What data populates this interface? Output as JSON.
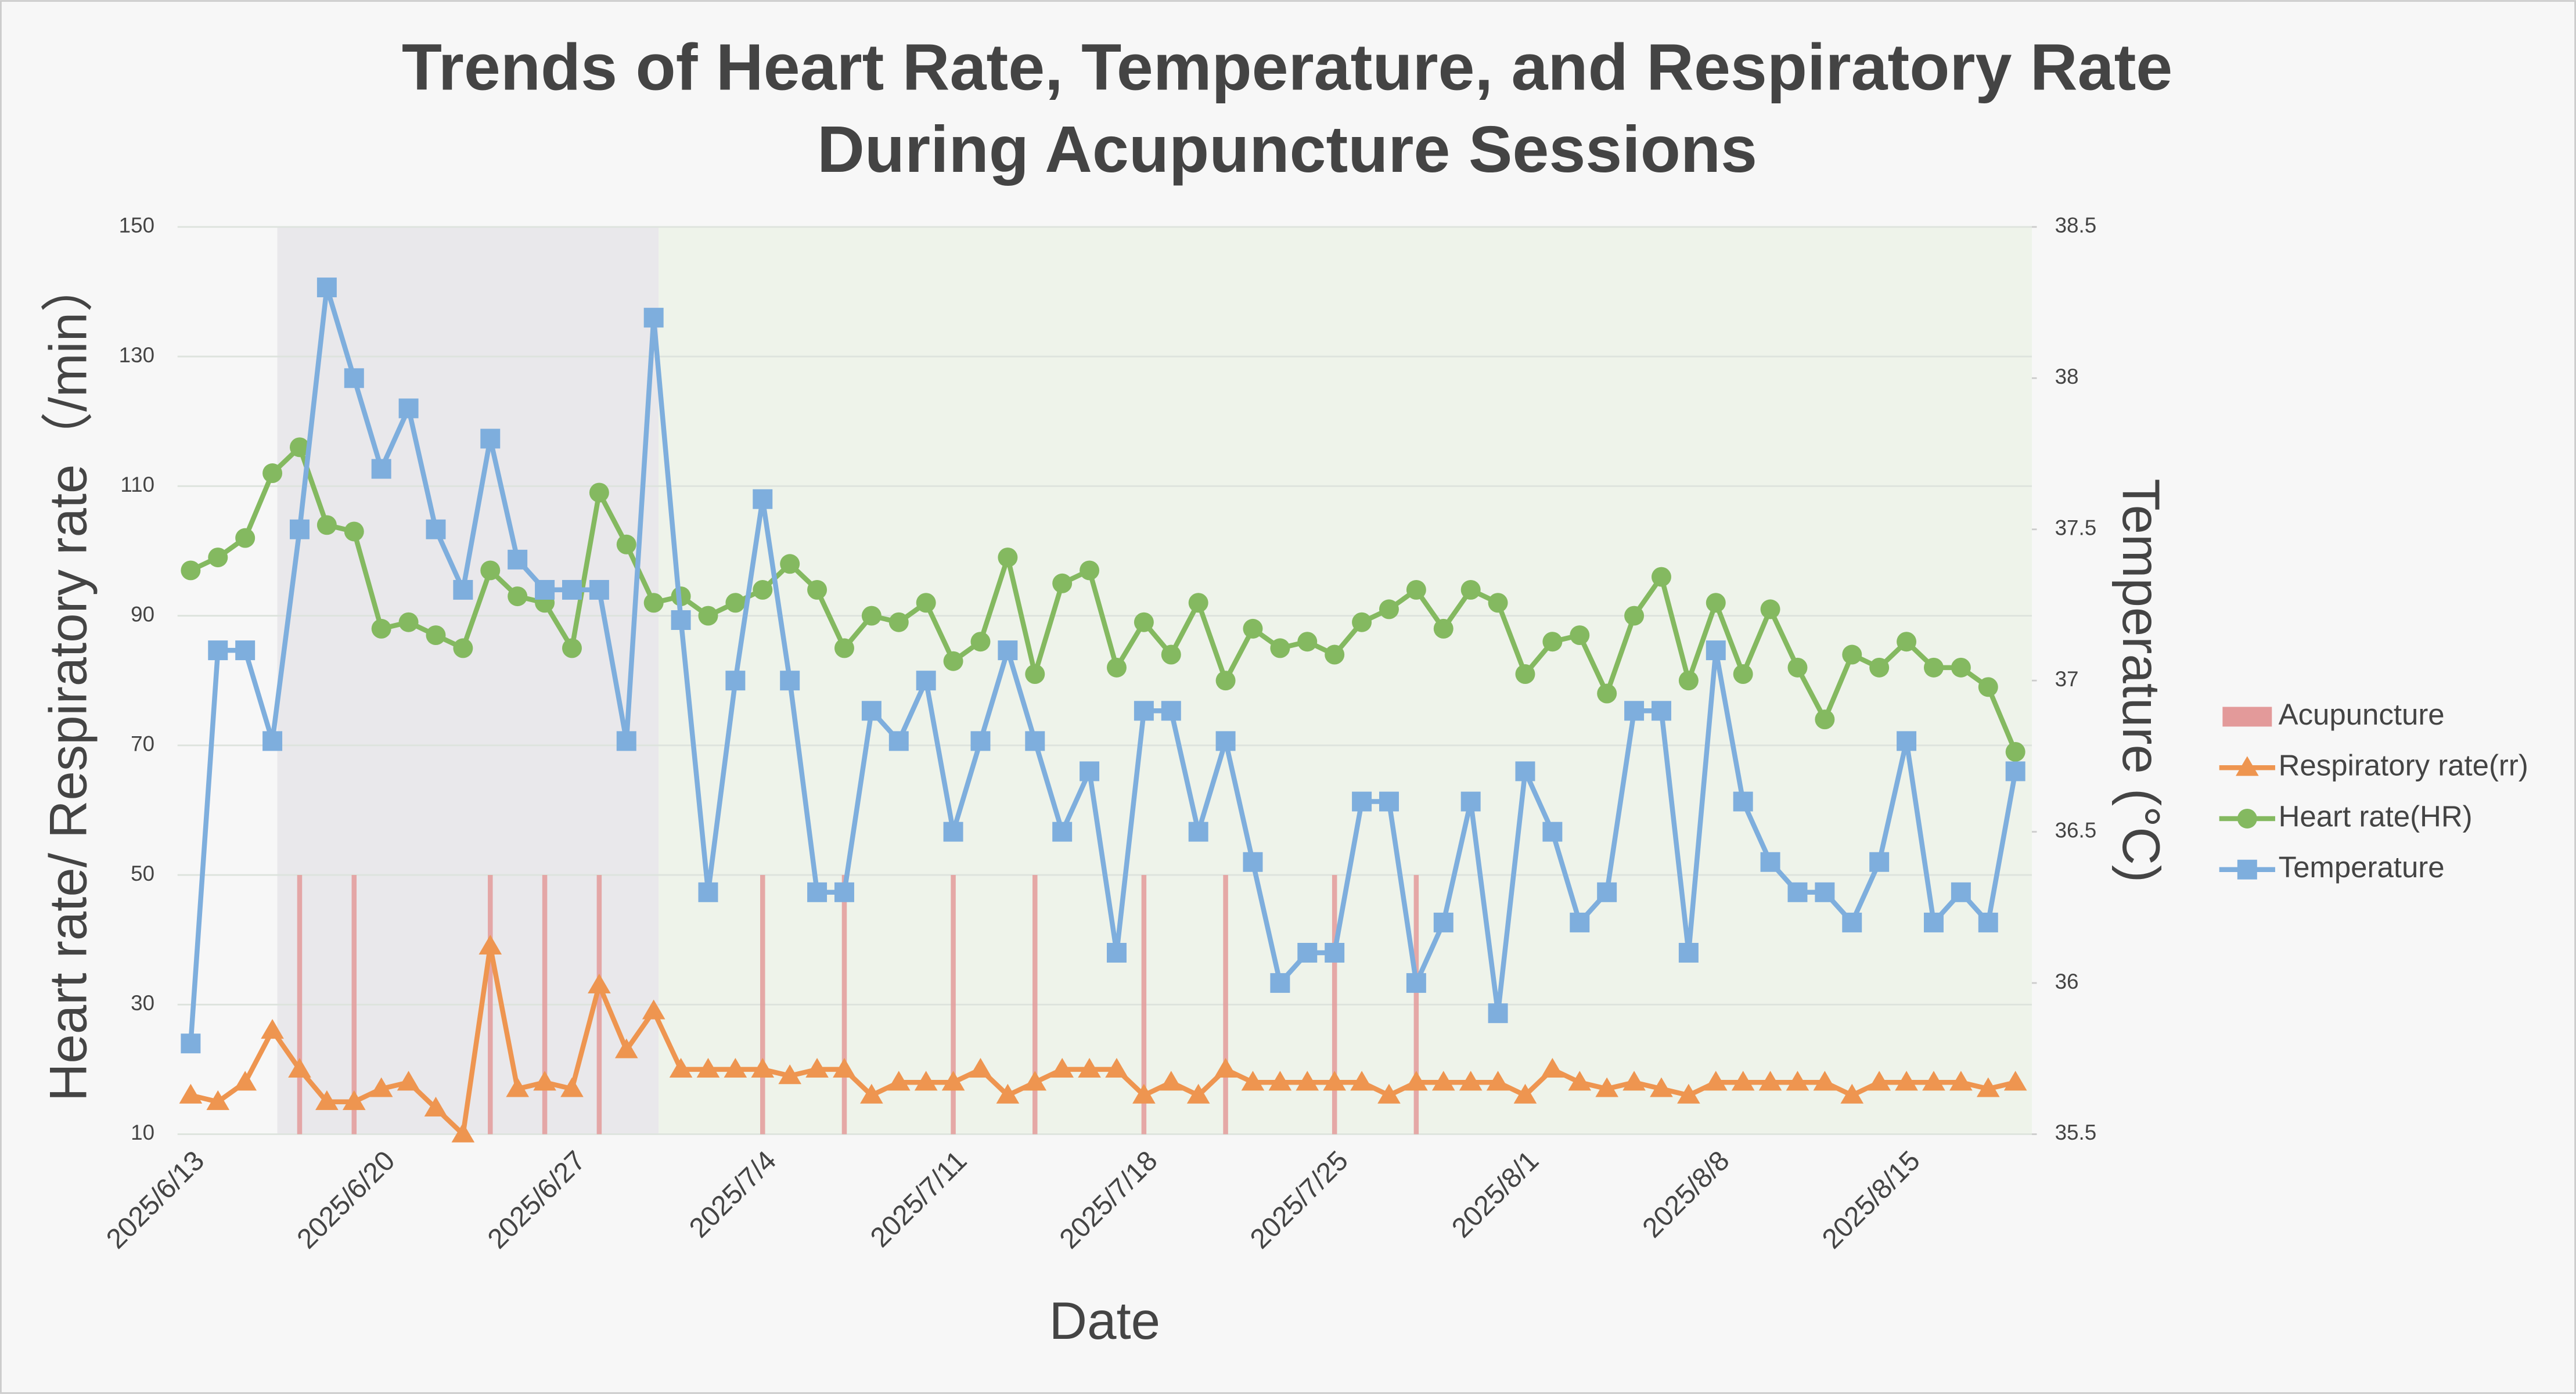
{
  "chart_data": {
    "type": "line",
    "title": "Trends of Heart Rate, Temperature, and Respiratory Rate",
    "subtitle": "During Acupuncture Sessions",
    "x_label": "Date",
    "y_label": "Heart rate/ Respiratory rate（/min）",
    "y2_label": "Temperature (°C)",
    "x": [
      "2025/6/13",
      "2025/6/14",
      "2025/6/15",
      "2025/6/16",
      "2025/6/17",
      "2025/6/18",
      "2025/6/19",
      "2025/6/20",
      "2025/6/21",
      "2025/6/22",
      "2025/6/23",
      "2025/6/24",
      "2025/6/25",
      "2025/6/26",
      "2025/6/27",
      "2025/6/28",
      "2025/6/29",
      "2025/6/30",
      "2025/7/1",
      "2025/7/2",
      "2025/7/3",
      "2025/7/4",
      "2025/7/5",
      "2025/7/6",
      "2025/7/7",
      "2025/7/8",
      "2025/7/9",
      "2025/7/10",
      "2025/7/11",
      "2025/7/12",
      "2025/7/13",
      "2025/7/14",
      "2025/7/15",
      "2025/7/16",
      "2025/7/17",
      "2025/7/18",
      "2025/7/19",
      "2025/7/20",
      "2025/7/21",
      "2025/7/22",
      "2025/7/23",
      "2025/7/24",
      "2025/7/25",
      "2025/7/26",
      "2025/7/27",
      "2025/7/28",
      "2025/7/29",
      "2025/7/30",
      "2025/7/31",
      "2025/8/1",
      "2025/8/2",
      "2025/8/3",
      "2025/8/4",
      "2025/8/5",
      "2025/8/6",
      "2025/8/7",
      "2025/8/8",
      "2025/8/9",
      "2025/8/10",
      "2025/8/11",
      "2025/8/12",
      "2025/8/13",
      "2025/8/14",
      "2025/8/15",
      "2025/8/16",
      "2025/8/17",
      "2025/8/18",
      "2025/8/19"
    ],
    "xticks": [
      "2025/6/13",
      "2025/6/20",
      "2025/6/27",
      "2025/7/4",
      "2025/7/11",
      "2025/7/18",
      "2025/7/25",
      "2025/8/1",
      "2025/8/8",
      "2025/8/15"
    ],
    "ylim": [
      10,
      150
    ],
    "yticks": [
      10,
      30,
      50,
      70,
      90,
      110,
      130,
      150
    ],
    "y2lim": [
      35.5,
      38.5
    ],
    "y2ticks": [
      35.5,
      36,
      36.5,
      37,
      37.5,
      38,
      38.5
    ],
    "grid": true,
    "shaded_regions": [
      {
        "from": "2025/6/16",
        "to": "2025/6/30",
        "color": "#e9e8eb"
      },
      {
        "from": "2025/6/30",
        "to": "2025/8/19",
        "color": "#eef3ea"
      }
    ],
    "series": [
      {
        "name": "Acupuncture",
        "type": "bar",
        "color": "#e39a9a",
        "values": [
          null,
          null,
          null,
          null,
          50,
          null,
          50,
          null,
          null,
          null,
          null,
          50,
          null,
          50,
          null,
          50,
          null,
          null,
          null,
          null,
          null,
          50,
          null,
          null,
          50,
          null,
          null,
          null,
          50,
          null,
          null,
          50,
          null,
          null,
          null,
          50,
          null,
          null,
          50,
          null,
          null,
          null,
          50,
          null,
          null,
          50,
          null,
          null,
          null,
          null,
          null,
          null,
          null,
          null,
          null,
          null,
          null,
          null,
          null,
          null,
          null,
          null,
          null,
          null,
          null,
          null,
          null,
          null
        ]
      },
      {
        "name": "Respiratory rate(rr)",
        "marker": "triangle",
        "color": "#ee9550",
        "values": [
          16,
          15,
          18,
          26,
          20,
          15,
          15,
          17,
          18,
          14,
          10,
          39,
          17,
          18,
          17,
          33,
          23,
          29,
          20,
          20,
          20,
          20,
          19,
          20,
          20,
          16,
          18,
          18,
          18,
          20,
          16,
          18,
          20,
          20,
          20,
          16,
          18,
          16,
          20,
          18,
          18,
          18,
          18,
          18,
          16,
          18,
          18,
          18,
          18,
          16,
          20,
          18,
          17,
          18,
          17,
          16,
          18,
          18,
          18,
          18,
          18,
          16,
          18,
          18,
          18,
          18,
          17,
          18
        ]
      },
      {
        "name": "Heart rate(HR)",
        "marker": "circle",
        "color": "#84b960",
        "values": [
          97,
          99,
          102,
          112,
          116,
          104,
          103,
          88,
          89,
          87,
          85,
          97,
          93,
          92,
          85,
          109,
          101,
          92,
          93,
          90,
          92,
          94,
          98,
          94,
          85,
          90,
          89,
          92,
          83,
          86,
          99,
          81,
          95,
          97,
          82,
          89,
          84,
          92,
          80,
          88,
          85,
          86,
          84,
          89,
          91,
          94,
          88,
          94,
          92,
          81,
          86,
          87,
          78,
          90,
          96,
          80,
          92,
          81,
          91,
          82,
          74,
          84,
          82,
          86,
          82,
          82,
          79,
          69
        ]
      },
      {
        "name": "Temperature",
        "marker": "square",
        "axis": "y2",
        "color": "#7eaedd",
        "values": [
          35.8,
          37.1,
          37.1,
          36.8,
          37.5,
          38.3,
          38.0,
          37.7,
          37.9,
          37.5,
          37.3,
          37.8,
          37.4,
          37.3,
          37.3,
          37.3,
          36.8,
          38.2,
          37.2,
          36.3,
          37.0,
          37.6,
          37.0,
          36.3,
          36.3,
          36.9,
          36.8,
          37.0,
          36.5,
          36.8,
          37.1,
          36.8,
          36.5,
          36.7,
          36.1,
          36.9,
          36.9,
          36.5,
          36.8,
          36.4,
          36.0,
          36.1,
          36.1,
          36.6,
          36.6,
          36.0,
          36.2,
          36.6,
          35.9,
          36.7,
          36.5,
          36.2,
          36.3,
          36.9,
          36.9,
          36.1,
          37.1,
          36.6,
          36.4,
          36.3,
          36.3,
          36.2,
          36.4,
          36.8,
          36.2,
          36.3,
          36.2,
          36.7
        ]
      }
    ]
  }
}
